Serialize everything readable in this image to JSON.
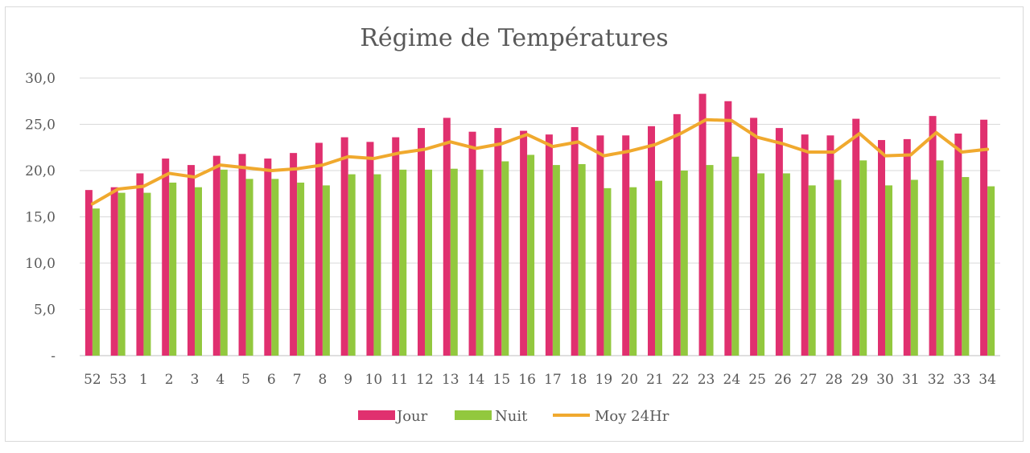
{
  "chart_data": {
    "type": "bar",
    "title": "Régime de Températures",
    "categories": [
      "52",
      "53",
      "1",
      "2",
      "3",
      "4",
      "5",
      "6",
      "7",
      "8",
      "9",
      "10",
      "11",
      "12",
      "13",
      "14",
      "15",
      "16",
      "17",
      "18",
      "19",
      "20",
      "21",
      "22",
      "23",
      "24",
      "25",
      "26",
      "27",
      "28",
      "29",
      "30",
      "31",
      "32",
      "33",
      "34"
    ],
    "yticks": [
      "-",
      "5,0",
      "10,0",
      "15,0",
      "20,0",
      "25,0",
      "30,0"
    ],
    "ylim": [
      0,
      30
    ],
    "grid": true,
    "legend": "bottom",
    "series": [
      {
        "name": "Jour",
        "kind": "bar",
        "color": "#e0306f",
        "values": [
          17.9,
          18.2,
          19.7,
          21.3,
          20.6,
          21.6,
          21.8,
          21.3,
          21.9,
          23.0,
          23.6,
          23.1,
          23.6,
          24.6,
          25.7,
          24.2,
          24.6,
          24.3,
          23.9,
          24.7,
          23.8,
          23.8,
          24.8,
          26.1,
          28.3,
          27.5,
          25.7,
          24.6,
          23.9,
          23.8,
          25.6,
          23.3,
          23.4,
          25.9,
          24.0,
          25.5
        ]
      },
      {
        "name": "Nuit",
        "kind": "bar",
        "color": "#92c83e",
        "values": [
          15.9,
          17.6,
          17.6,
          18.7,
          18.2,
          20.1,
          19.1,
          19.1,
          18.7,
          18.4,
          19.6,
          19.6,
          20.1,
          20.1,
          20.2,
          20.1,
          21.0,
          21.7,
          20.6,
          20.7,
          18.1,
          18.2,
          18.9,
          20.0,
          20.6,
          21.5,
          19.7,
          19.7,
          18.4,
          19.0,
          21.1,
          18.4,
          19.0,
          21.1,
          19.3,
          18.3
        ]
      },
      {
        "name": "Moy 24Hr",
        "kind": "line",
        "color": "#f0a92e",
        "values": [
          16.4,
          18.0,
          18.3,
          19.7,
          19.3,
          20.6,
          20.3,
          20.0,
          20.2,
          20.6,
          21.5,
          21.3,
          21.9,
          22.3,
          23.1,
          22.4,
          22.9,
          23.9,
          22.6,
          23.1,
          21.6,
          22.1,
          22.8,
          24.0,
          25.5,
          25.4,
          23.6,
          22.9,
          22.0,
          22.0,
          24.0,
          21.6,
          21.7,
          24.1,
          22.0,
          22.3
        ]
      }
    ]
  }
}
